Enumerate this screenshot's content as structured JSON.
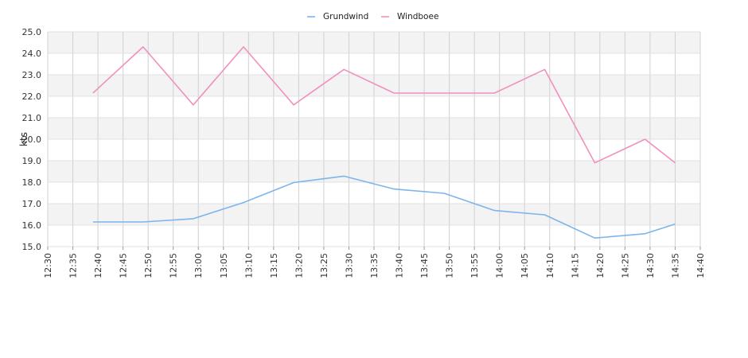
{
  "chart_data": {
    "type": "line",
    "title": "",
    "xlabel": "",
    "ylabel": "kts",
    "ylim": [
      15.0,
      25.0
    ],
    "y_ticks": [
      "15.0",
      "16.0",
      "17.0",
      "18.0",
      "19.0",
      "20.0",
      "21.0",
      "22.0",
      "23.0",
      "24.0",
      "25.0"
    ],
    "x_ticks": [
      "12:30",
      "12:35",
      "12:40",
      "12:45",
      "12:50",
      "12:55",
      "13:00",
      "13:05",
      "13:10",
      "13:15",
      "13:20",
      "13:25",
      "13:30",
      "13:35",
      "13:40",
      "13:45",
      "13:50",
      "13:55",
      "14:00",
      "14:05",
      "14:10",
      "14:15",
      "14:20",
      "14:25",
      "14:30",
      "14:35",
      "14:40"
    ],
    "xlim": [
      "12:30",
      "14:40"
    ],
    "grid": true,
    "legend_position": "top-center",
    "series": [
      {
        "name": "Grundwind",
        "color": "#7cb5ec",
        "x": [
          "12:39",
          "12:49",
          "12:59",
          "13:09",
          "13:19",
          "13:29",
          "13:39",
          "13:49",
          "13:59",
          "14:09",
          "14:19",
          "14:29",
          "14:35"
        ],
        "values": [
          16.15,
          16.15,
          16.3,
          17.05,
          17.98,
          18.28,
          17.68,
          17.48,
          16.68,
          16.48,
          15.4,
          15.6,
          16.05
        ]
      },
      {
        "name": "Windboee",
        "color": "#f28fbf",
        "x": [
          "12:39",
          "12:49",
          "12:59",
          "13:09",
          "13:19",
          "13:29",
          "13:39",
          "13:49",
          "13:59",
          "14:09",
          "14:19",
          "14:29",
          "14:35"
        ],
        "values": [
          22.15,
          24.3,
          21.6,
          24.3,
          21.6,
          23.25,
          22.15,
          22.15,
          22.15,
          23.25,
          18.9,
          20.0,
          18.9
        ]
      }
    ]
  }
}
